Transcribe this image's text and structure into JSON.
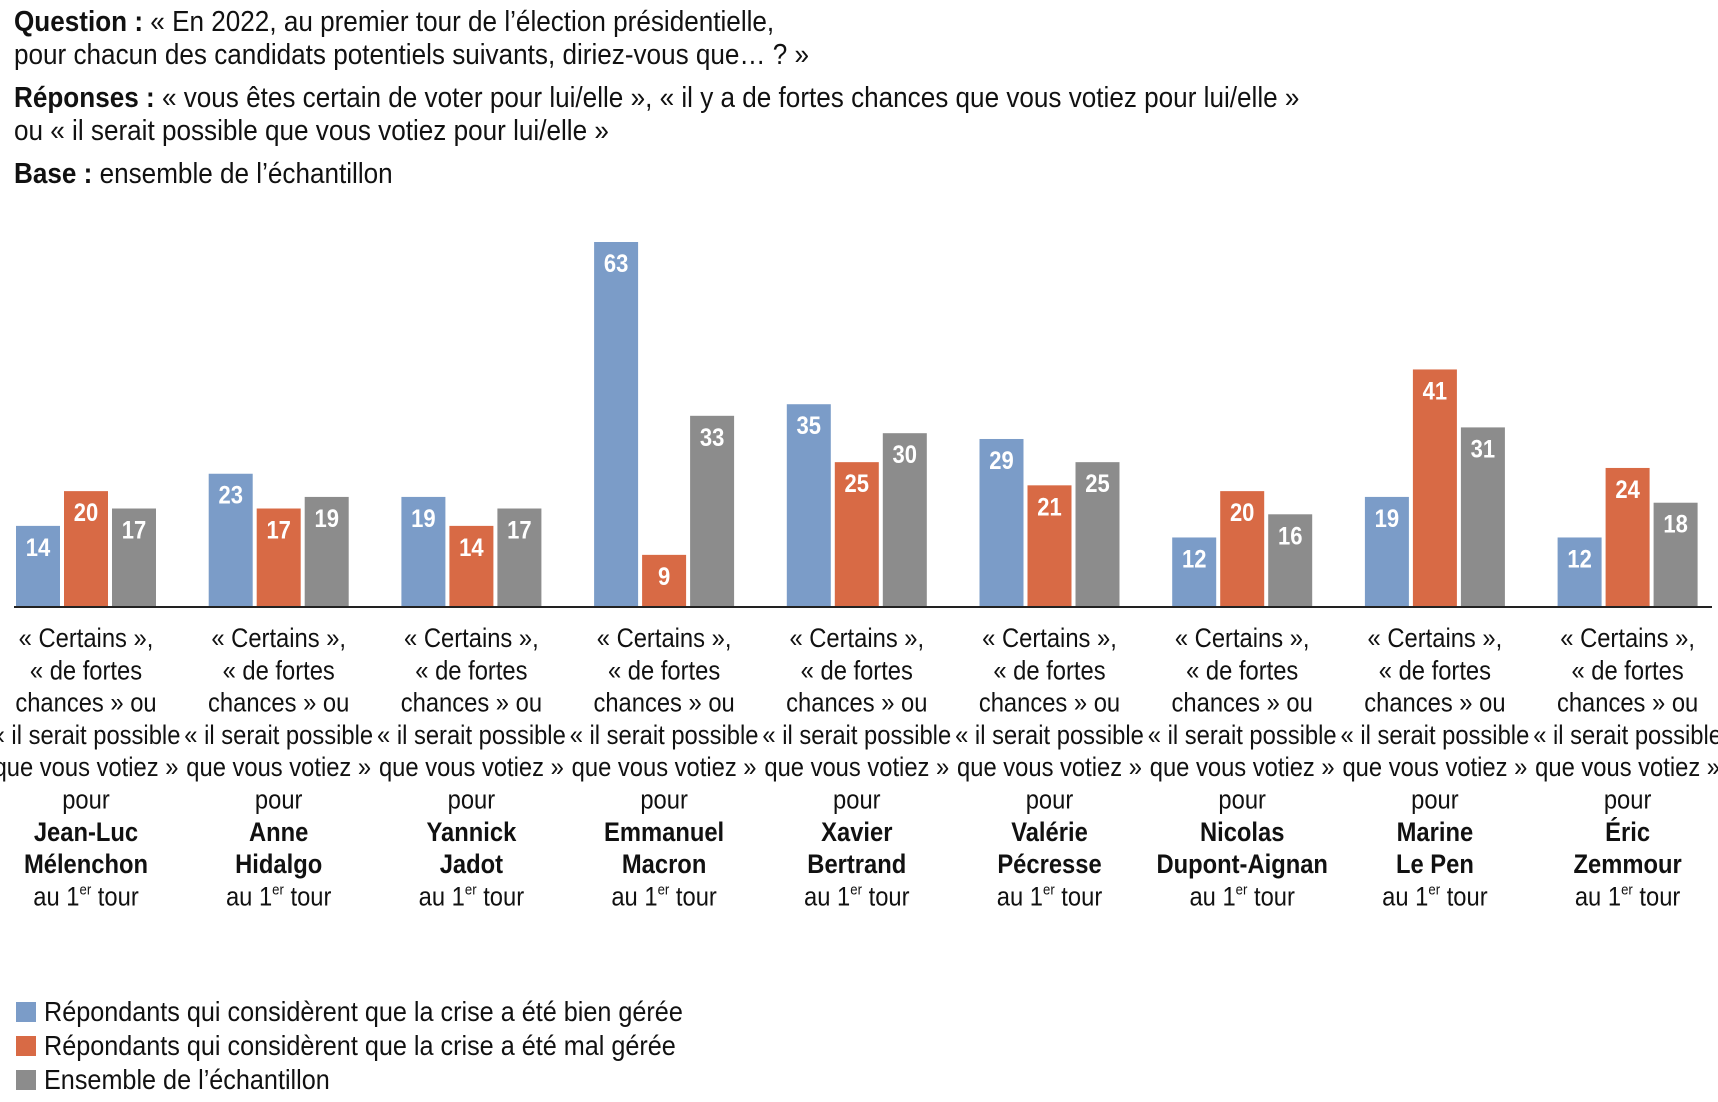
{
  "header": {
    "question_label": "Question :",
    "question_line1": "« En 2022, au premier tour de l’élection présidentielle,",
    "question_line2": "pour chacun des candidats potentiels suivants, diriez-vous que… ? »",
    "answers_label": "Réponses :",
    "answers_line1": "« vous êtes certain de voter pour lui/elle », « il y a de fortes chances que vous votiez pour lui/elle »",
    "answers_line2": "ou « il serait possible que vous votiez pour lui/elle »",
    "base_label": "Base :",
    "base_text": "ensemble de l’échantillon"
  },
  "colors": {
    "well": "#7b9cc8",
    "badly": "#d86a45",
    "all": "#8c8c8c",
    "value_text": "#ffffff",
    "baseline": "#222222"
  },
  "chart_data": {
    "type": "bar",
    "title": "",
    "xlabel": "",
    "ylabel": "",
    "ylim": [
      0,
      63
    ],
    "category_lines": [
      "« Certains »,",
      "« de fortes",
      "chances » ou",
      "« il serait possible",
      "que vous votiez »",
      "pour"
    ],
    "round_prefix": "au 1",
    "round_sup": "er",
    "round_suffix": " tour",
    "categories": [
      {
        "name": [
          "Jean-Luc",
          "Mélenchon"
        ]
      },
      {
        "name": [
          "Anne",
          "Hidalgo"
        ]
      },
      {
        "name": [
          "Yannick",
          "Jadot"
        ]
      },
      {
        "name": [
          "Emmanuel",
          "Macron"
        ]
      },
      {
        "name": [
          "Xavier",
          "Bertrand"
        ]
      },
      {
        "name": [
          "Valérie",
          "Pécresse"
        ]
      },
      {
        "name": [
          "Nicolas",
          "Dupont-Aignan"
        ]
      },
      {
        "name": [
          "Marine",
          "Le Pen"
        ]
      },
      {
        "name": [
          "Éric",
          "Zemmour"
        ]
      }
    ],
    "series": [
      {
        "name": "Répondants qui considèrent que la crise a été bien gérée",
        "color_key": "well",
        "values": [
          14,
          23,
          19,
          63,
          35,
          29,
          12,
          19,
          12
        ]
      },
      {
        "name": "Répondants qui considèrent que la crise a été mal gérée",
        "color_key": "badly",
        "values": [
          20,
          17,
          14,
          9,
          25,
          21,
          20,
          41,
          24
        ]
      },
      {
        "name": "Ensemble de l’échantillon",
        "color_key": "all",
        "values": [
          17,
          19,
          17,
          33,
          30,
          25,
          16,
          31,
          18
        ]
      }
    ],
    "legend_position": "bottom-left"
  }
}
